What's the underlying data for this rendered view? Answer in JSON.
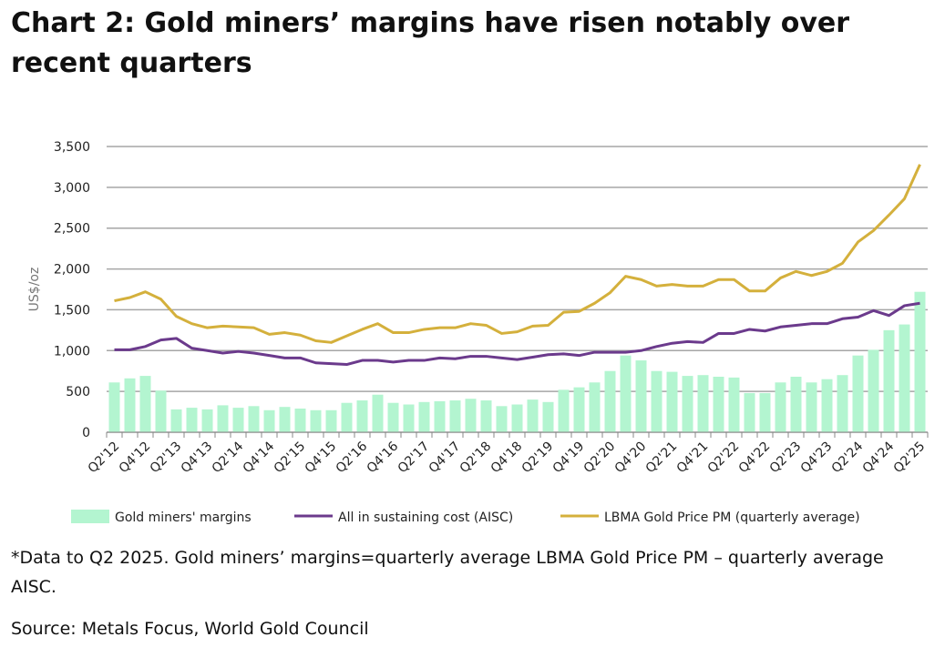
{
  "chart_data": {
    "type": "bar+line",
    "title": "Chart 2: Gold miners’ margins have risen notably over recent quarters",
    "ylabel": "US$/oz",
    "xlabel": "",
    "ylim": [
      0,
      3500
    ],
    "yticks": [
      "0",
      "500",
      "1,000",
      "1,500",
      "2,000",
      "2,500",
      "3,000",
      "3,500"
    ],
    "ytick_values": [
      0,
      500,
      1000,
      1500,
      2000,
      2500,
      3000,
      3500
    ],
    "grid": true,
    "legend_placement": "bottom",
    "categories": [
      "Q2'12",
      "Q3'12",
      "Q4'12",
      "Q1'13",
      "Q2'13",
      "Q3'13",
      "Q4'13",
      "Q1'14",
      "Q2'14",
      "Q3'14",
      "Q4'14",
      "Q1'15",
      "Q2'15",
      "Q3'15",
      "Q4'15",
      "Q1'16",
      "Q2'16",
      "Q3'16",
      "Q4'16",
      "Q1'17",
      "Q2'17",
      "Q3'17",
      "Q4'17",
      "Q1'18",
      "Q2'18",
      "Q3'18",
      "Q4'18",
      "Q1'19",
      "Q2'19",
      "Q3'19",
      "Q4'19",
      "Q1'20",
      "Q2'20",
      "Q3'20",
      "Q4'20",
      "Q1'21",
      "Q2'21",
      "Q3'21",
      "Q4'21",
      "Q1'22",
      "Q2'22",
      "Q3'22",
      "Q4'22",
      "Q1'23",
      "Q2'23",
      "Q3'23",
      "Q4'23",
      "Q1'24",
      "Q2'24",
      "Q3'24",
      "Q4'24",
      "Q1'25",
      "Q2'25"
    ],
    "xtick_labels": [
      "Q2'12",
      "Q4'12",
      "Q2'13",
      "Q4'13",
      "Q2'14",
      "Q4'14",
      "Q2'15",
      "Q4'15",
      "Q2'16",
      "Q4'16",
      "Q2'17",
      "Q4'17",
      "Q2'18",
      "Q4'18",
      "Q2'19",
      "Q4'19",
      "Q2'20",
      "Q4'20",
      "Q2'21",
      "Q4'21",
      "Q2'22",
      "Q4'22",
      "Q2'23",
      "Q4'23",
      "Q2'24",
      "Q4'24",
      "Q2'25"
    ],
    "series": [
      {
        "name": "Gold miners' margins",
        "type": "bar",
        "color": "#b3f5d0",
        "values": [
          610,
          660,
          690,
          510,
          280,
          300,
          280,
          330,
          300,
          320,
          270,
          310,
          290,
          270,
          270,
          360,
          390,
          460,
          360,
          340,
          370,
          380,
          390,
          410,
          390,
          320,
          340,
          400,
          370,
          520,
          550,
          610,
          750,
          940,
          880,
          750,
          740,
          690,
          700,
          680,
          670,
          480,
          480,
          610,
          680,
          610,
          650,
          700,
          940,
          1010,
          1250,
          1320,
          1720
        ]
      },
      {
        "name": "All in sustaining cost (AISC)",
        "type": "line",
        "color": "#6b3a8c",
        "values": [
          1010,
          1010,
          1050,
          1130,
          1150,
          1030,
          1000,
          970,
          990,
          970,
          940,
          910,
          910,
          850,
          840,
          830,
          880,
          880,
          860,
          880,
          880,
          910,
          900,
          930,
          930,
          910,
          890,
          920,
          950,
          960,
          940,
          980,
          980,
          980,
          1000,
          1050,
          1090,
          1110,
          1100,
          1210,
          1210,
          1260,
          1240,
          1290,
          1310,
          1330,
          1330,
          1390,
          1410,
          1490,
          1430,
          1550,
          1580
        ]
      },
      {
        "name": "LBMA Gold Price PM (quarterly average)",
        "type": "line",
        "color": "#d4b03c",
        "values": [
          1610,
          1650,
          1720,
          1630,
          1420,
          1330,
          1280,
          1300,
          1290,
          1280,
          1200,
          1220,
          1190,
          1120,
          1100,
          1180,
          1260,
          1330,
          1220,
          1220,
          1260,
          1280,
          1280,
          1330,
          1310,
          1210,
          1230,
          1300,
          1310,
          1470,
          1480,
          1580,
          1710,
          1910,
          1870,
          1790,
          1810,
          1790,
          1790,
          1870,
          1870,
          1730,
          1730,
          1890,
          1970,
          1920,
          1970,
          2070,
          2330,
          2470,
          2660,
          2860,
          3280
        ]
      }
    ]
  },
  "footnote": "*Data to Q2 2025. Gold miners’ margins=quarterly average LBMA Gold Price PM – quarterly average AISC.",
  "source": "Source: Metals Focus, World Gold Council"
}
